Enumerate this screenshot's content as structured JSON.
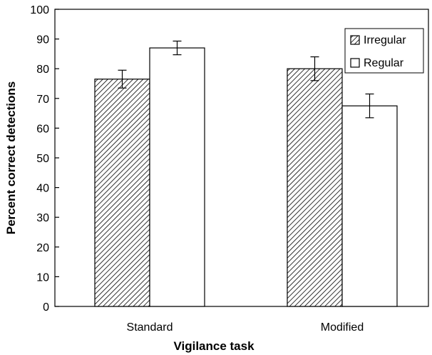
{
  "chart_data": {
    "type": "bar",
    "title": "",
    "xlabel": "Vigilance task",
    "ylabel": "Percent correct detections",
    "ylim": [
      0,
      100
    ],
    "yticks": [
      0,
      10,
      20,
      30,
      40,
      50,
      60,
      70,
      80,
      90,
      100
    ],
    "categories": [
      "Standard",
      "Modified"
    ],
    "series": [
      {
        "name": "Irregular",
        "values": [
          76.5,
          80
        ],
        "errors": [
          3,
          4
        ],
        "fill": "hatched"
      },
      {
        "name": "Regular",
        "values": [
          87,
          67.5
        ],
        "errors": [
          2.3,
          4
        ],
        "fill": "#ffffff"
      }
    ],
    "legend": {
      "position": "top-right"
    },
    "grid": false
  }
}
